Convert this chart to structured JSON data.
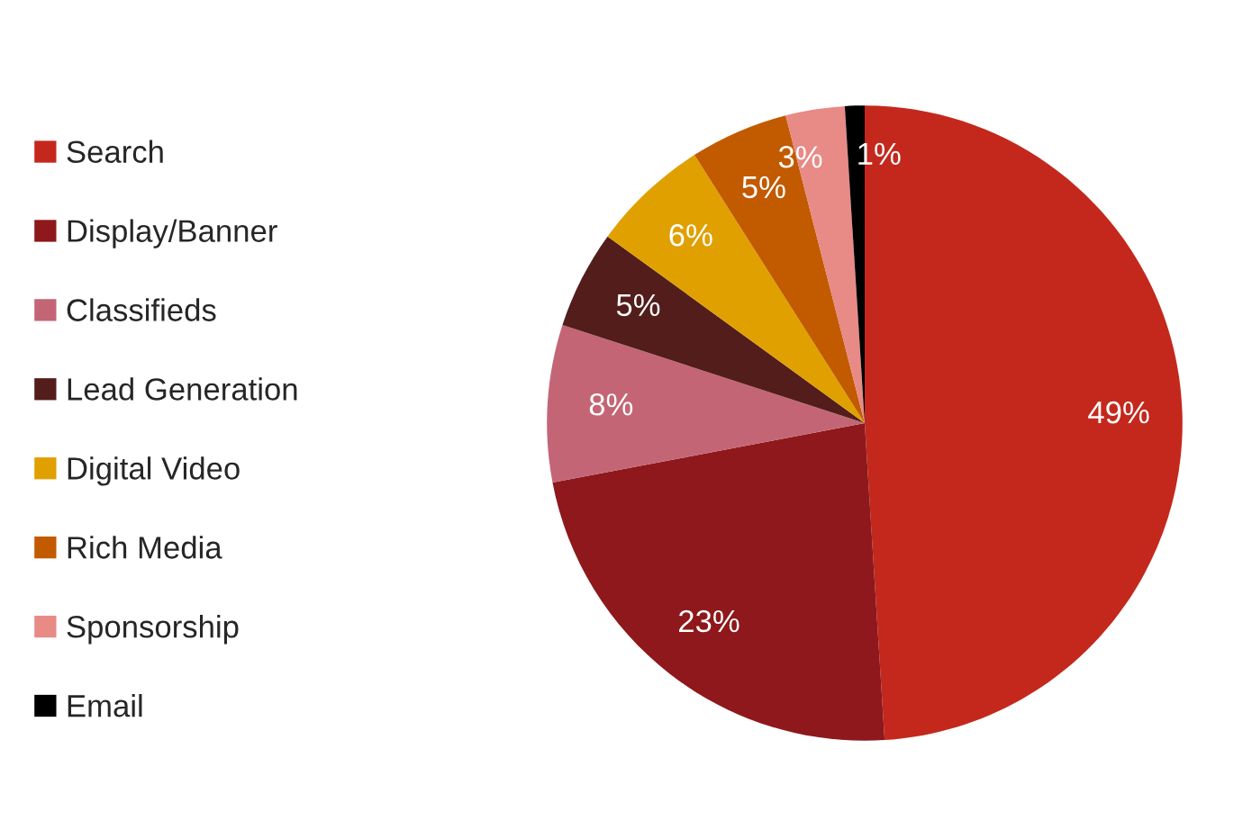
{
  "chart_data": {
    "type": "pie",
    "categories": [
      "Search",
      "Display/Banner",
      "Classifieds",
      "Lead Generation",
      "Digital Video",
      "Rich Media",
      "Sponsorship",
      "Email"
    ],
    "values": [
      49,
      23,
      8,
      5,
      6,
      5,
      3,
      1
    ],
    "colors": [
      "#c4281d",
      "#8e181b",
      "#c46575",
      "#521d1b",
      "#e0a000",
      "#c25a00",
      "#e88a86",
      "#000000"
    ],
    "value_labels": [
      "49%",
      "23%",
      "8%",
      "5%",
      "6%",
      "5%",
      "3%",
      "1%"
    ],
    "legend": "left"
  }
}
